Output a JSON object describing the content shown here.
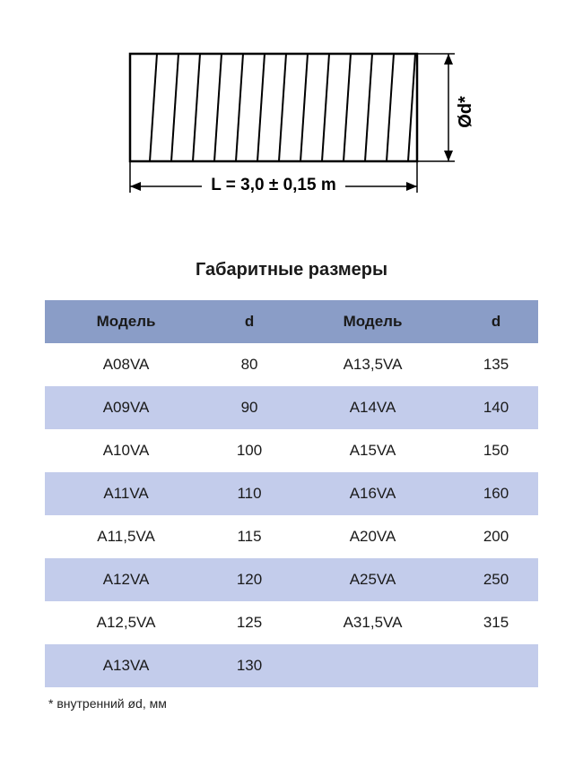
{
  "diagram": {
    "length_label": "L = 3,0 ± 0,15 m",
    "diameter_label": "Ød*",
    "stroke_color": "#000000",
    "stroke_width": 2,
    "fill_color": "#ffffff",
    "label_fontsize_L": 18,
    "label_fontsize_D": 18
  },
  "title": "Габаритные размеры",
  "table": {
    "header_bg": "#8a9dc7",
    "row_alt_bg": "#c3cceb",
    "row_bg": "#ffffff",
    "columns": [
      "Модель",
      "d",
      "Модель",
      "d"
    ],
    "rows": [
      [
        "A08VA",
        "80",
        "A13,5VA",
        "135"
      ],
      [
        "A09VA",
        "90",
        "A14VA",
        "140"
      ],
      [
        "A10VA",
        "100",
        "A15VA",
        "150"
      ],
      [
        "A11VA",
        "110",
        "A16VA",
        "160"
      ],
      [
        "A11,5VA",
        "115",
        "A20VA",
        "200"
      ],
      [
        "A12VA",
        "120",
        "A25VA",
        "250"
      ],
      [
        "A12,5VA",
        "125",
        "A31,5VA",
        "315"
      ],
      [
        "A13VA",
        "130",
        "",
        ""
      ]
    ]
  },
  "footnote": "* внутренний ød, мм"
}
